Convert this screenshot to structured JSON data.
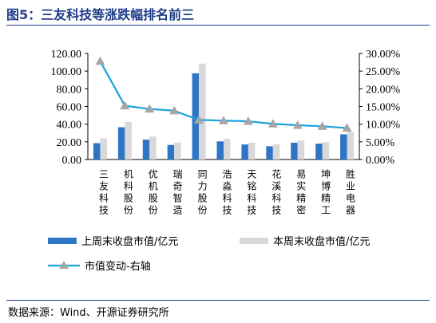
{
  "header": {
    "title": "图5：三友科技等涨跌幅排名前三"
  },
  "footer": {
    "source": "数据来源：Wind、开源证券研究所"
  },
  "colors": {
    "prev_bar": "#2e75c6",
    "curr_bar": "#d9d9d9",
    "line": "#1aa3dc",
    "marker": "#a6a6a6",
    "title": "#1f3c88"
  },
  "chart_data": {
    "type": "bar",
    "categories": [
      "三友科技",
      "机科股份",
      "优机股份",
      "瑞奇智造",
      "同力股份",
      "浩淼科技",
      "天铭科技",
      "花溪科技",
      "易实精密",
      "坤博精工",
      "胜业电器"
    ],
    "series": [
      {
        "name": "上周末收盘市值/亿元",
        "type": "bar",
        "axis": "left",
        "values": [
          18.5,
          36.5,
          22.5,
          16.5,
          97.5,
          20.5,
          17.0,
          15.0,
          19.0,
          18.0,
          28.5
        ]
      },
      {
        "name": "本周末收盘市值/亿元",
        "type": "bar",
        "axis": "left",
        "values": [
          24.0,
          42.5,
          26.0,
          19.0,
          108.5,
          23.5,
          19.0,
          17.0,
          21.5,
          19.5,
          31.5
        ]
      },
      {
        "name": "市值变动-右轴",
        "type": "line",
        "axis": "right",
        "values": [
          27.8,
          15.2,
          14.3,
          13.8,
          11.2,
          11.0,
          10.8,
          10.1,
          9.7,
          9.4,
          8.9
        ]
      }
    ],
    "y_left": {
      "min": 0,
      "max": 120,
      "step": 20,
      "tick_labels": [
        "0.00",
        "20.00",
        "40.00",
        "60.00",
        "80.00",
        "100.00",
        "120.00"
      ]
    },
    "y_right": {
      "min": 0,
      "max": 30,
      "step": 5,
      "tick_labels": [
        "0.00%",
        "5.00%",
        "10.00%",
        "15.00%",
        "20.00%",
        "25.00%",
        "30.00%"
      ]
    },
    "grid": false,
    "legend_position": "bottom"
  }
}
